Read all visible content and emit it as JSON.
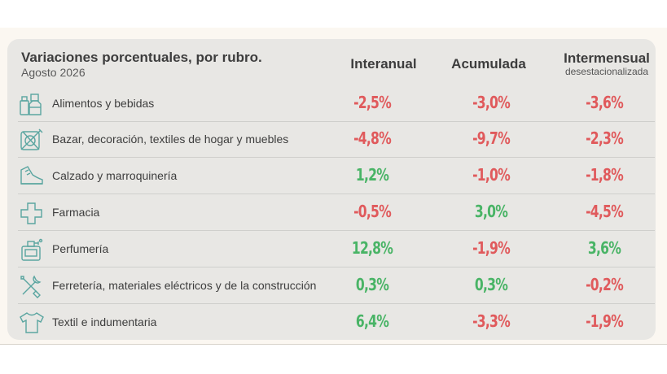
{
  "header": {
    "title": "Variaciones porcentuales, por rubro.",
    "subtitle": "Agosto 2026",
    "col1": "Interanual",
    "col2": "Acumulada",
    "col3": "Intermensual",
    "col3_sub": "desestacionalizada"
  },
  "colors": {
    "negative": "#e05a5c",
    "positive": "#49b466",
    "icon": "#5aa5a0"
  },
  "rows": [
    {
      "label": "Alimentos y bebidas",
      "icon": "groceries-icon",
      "interanual": "-2,5%",
      "acumulada": "-3,0%",
      "intermensual": "-3,6%"
    },
    {
      "label": "Bazar, decoración, textiles de hogar y muebles",
      "icon": "home-goods-icon",
      "interanual": "-4,8%",
      "acumulada": "-9,7%",
      "intermensual": "-2,3%"
    },
    {
      "label": "Calzado y marroquinería",
      "icon": "shoe-icon",
      "interanual": "1,2%",
      "acumulada": "-1,0%",
      "intermensual": "-1,8%"
    },
    {
      "label": "Farmacia",
      "icon": "pharmacy-cross-icon",
      "interanual": "-0,5%",
      "acumulada": "3,0%",
      "intermensual": "-4,5%"
    },
    {
      "label": "Perfumería",
      "icon": "perfume-icon",
      "interanual": "12,8%",
      "acumulada": "-1,9%",
      "intermensual": "3,6%"
    },
    {
      "label": "Ferretería, materiales eléctricos y de la construcción",
      "icon": "tools-icon",
      "interanual": "0,3%",
      "acumulada": "0,3%",
      "intermensual": "-0,2%"
    },
    {
      "label": "Textil e indumentaria",
      "icon": "shirt-icon",
      "interanual": "6,4%",
      "acumulada": "-3,3%",
      "intermensual": "-1,9%"
    }
  ]
}
